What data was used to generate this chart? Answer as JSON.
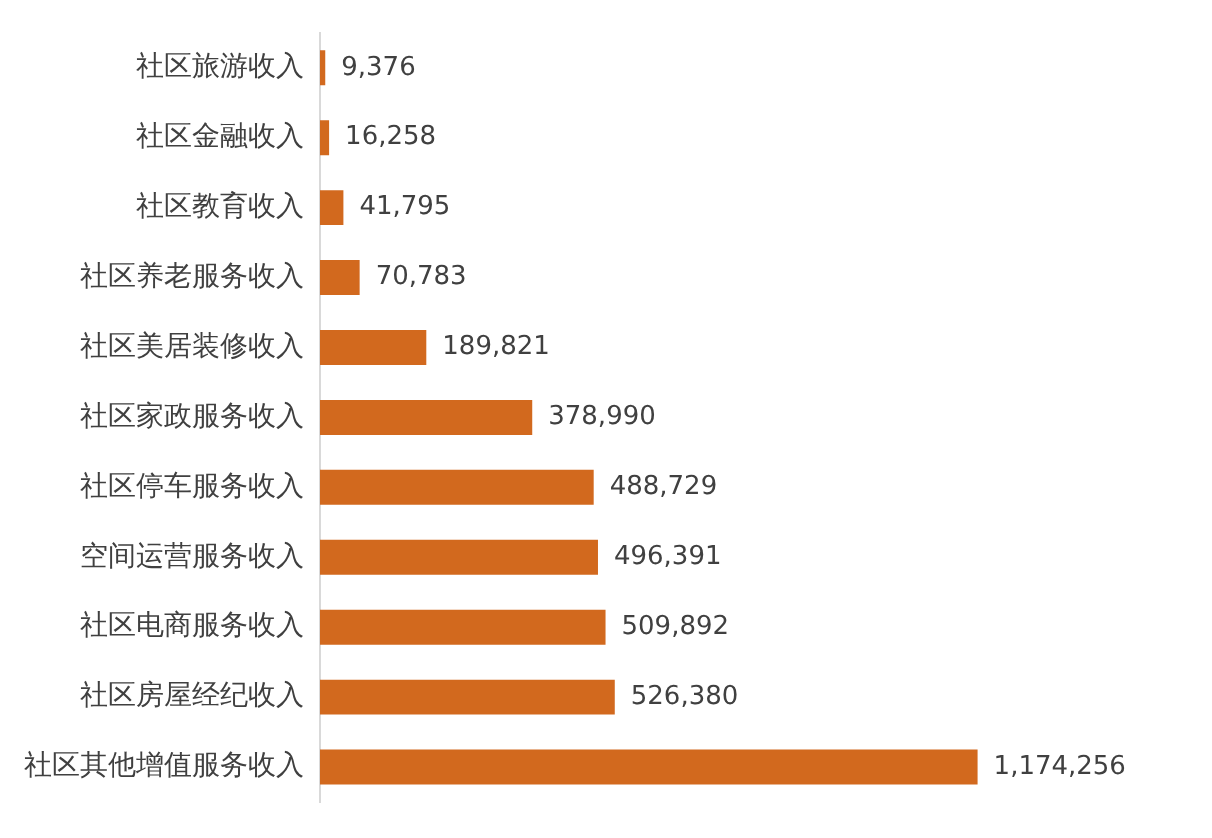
{
  "chart_data": {
    "type": "bar",
    "orientation": "horizontal",
    "categories": [
      "社区旅游收入",
      "社区金融收入",
      "社区教育收入",
      "社区养老服务收入",
      "社区美居装修收入",
      "社区家政服务收入",
      "社区停车服务收入",
      "空间运营服务收入",
      "社区电商服务收入",
      "社区房屋经纪收入",
      "社区其他增值服务收入"
    ],
    "values": [
      9376,
      16258,
      41795,
      70783,
      189821,
      378990,
      488729,
      496391,
      509892,
      526380,
      1174256
    ],
    "value_labels": [
      "9,376",
      "16,258",
      "41,795",
      "70,783",
      "189,821",
      "378,990",
      "488,729",
      "496,391",
      "509,892",
      "526,380",
      "1,174,256"
    ],
    "color": "#d2691e",
    "grid": false,
    "legend": false,
    "tick_labels": "y"
  }
}
